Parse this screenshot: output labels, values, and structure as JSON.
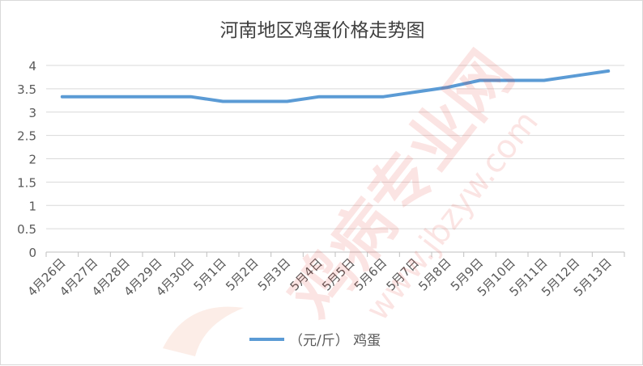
{
  "chart_data": {
    "type": "line",
    "title": "河南地区鸡蛋价格走势图",
    "xlabel": "",
    "ylabel": "",
    "categories": [
      "4月26日",
      "4月27日",
      "4月28日",
      "4月29日",
      "4月30日",
      "5月1日",
      "5月2日",
      "5月3日",
      "5月4日",
      "5月5日",
      "5月6日",
      "5月7日",
      "5月8日",
      "5月9日",
      "5月10日",
      "5月11日",
      "5月12日",
      "5月13日"
    ],
    "series": [
      {
        "name": "（元/斤） 鸡蛋",
        "color": "#5b9bd5",
        "values": [
          3.33,
          3.33,
          3.33,
          3.33,
          3.33,
          3.23,
          3.23,
          3.23,
          3.33,
          3.33,
          3.33,
          3.43,
          3.53,
          3.68,
          3.68,
          3.68,
          3.78,
          3.88
        ]
      }
    ],
    "ylim": [
      0,
      4
    ],
    "yticks": [
      "0",
      "0.5",
      "1",
      "1.5",
      "2",
      "2.5",
      "3",
      "3.5",
      "4"
    ],
    "grid": true,
    "legend_position": "bottom"
  },
  "watermark": {
    "text_large": "鸡病专业网",
    "text_url": "www.jbzyw.com",
    "color": "#e8392d"
  }
}
